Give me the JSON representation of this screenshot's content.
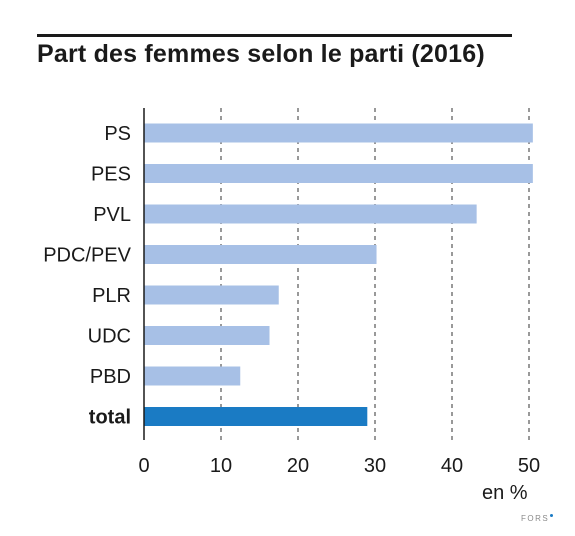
{
  "title": "Part des femmes selon le parti (2016)",
  "source_text": "FORS",
  "colors": {
    "bar": "#a7c0e6",
    "total_bar": "#1a7bc4",
    "axis": "#1a1a1a",
    "grid": "#333333"
  },
  "chart_data": {
    "type": "bar",
    "orientation": "horizontal",
    "title": "Part des femmes selon le parti (2016)",
    "categories": [
      "PS",
      "PES",
      "PVL",
      "PDC/PEV",
      "PLR",
      "UDC",
      "PBD",
      "total"
    ],
    "values": [
      50.5,
      50.5,
      43.2,
      30.2,
      17.5,
      16.3,
      12.5,
      29.0
    ],
    "highlight": [
      "total"
    ],
    "xlabel": "en %",
    "xlim": [
      0,
      52
    ],
    "xticks": [
      0,
      10,
      20,
      30,
      40,
      50
    ],
    "grid": "vertical dashed"
  }
}
